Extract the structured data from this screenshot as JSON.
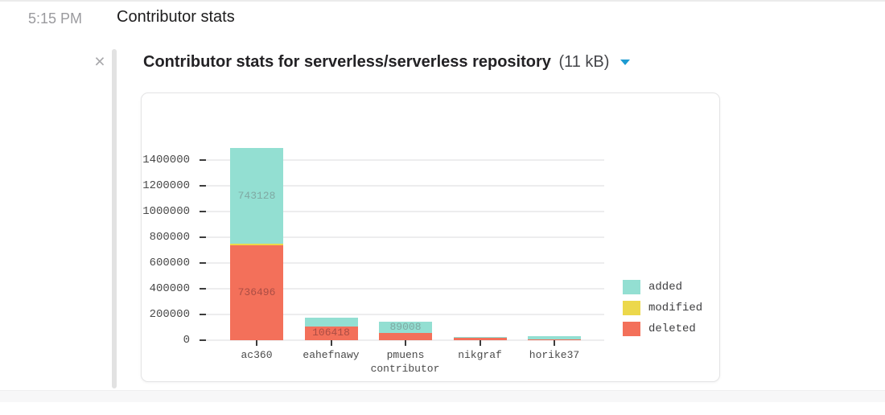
{
  "message": {
    "timestamp": "5:15 PM",
    "text": "Contributor stats"
  },
  "attachment": {
    "close_icon": "×",
    "title": "Contributor stats for serverless/serverless repository",
    "file_size": "(11 kB)",
    "chevron_icon": "chevron-down"
  },
  "colors": {
    "accent_blue": "#1d9bd1",
    "added": "#93dfd2",
    "modified": "#ecd84b",
    "deleted": "#f3705a",
    "gridline": "#ededee",
    "chart_text": "#4a4a4a"
  },
  "chart_data": {
    "type": "bar",
    "stacked": true,
    "title": "",
    "xlabel": "contributor",
    "ylabel": "",
    "categories": [
      "ac360",
      "eahefnawy",
      "pmuens",
      "nikgraf",
      "horike37"
    ],
    "series": [
      {
        "name": "added",
        "color": "#93dfd2",
        "label_color": "#7fa8a2",
        "values": [
          743128,
          68000,
          89008,
          10000,
          24000
        ],
        "value_labels": [
          "743128",
          null,
          "89008",
          null,
          null
        ]
      },
      {
        "name": "modified",
        "color": "#ecd84b",
        "label_color": "#b5a23a",
        "values": [
          12000,
          0,
          0,
          0,
          0
        ],
        "value_labels": [
          null,
          null,
          null,
          null,
          null
        ]
      },
      {
        "name": "deleted",
        "color": "#f3705a",
        "label_color": "#ab4d44",
        "values": [
          736496,
          106418,
          55000,
          18000,
          7000
        ],
        "value_labels": [
          "736496",
          "106418",
          null,
          null,
          null
        ]
      }
    ],
    "stack_order_bottom_to_top": [
      "deleted",
      "modified",
      "added"
    ],
    "yticks": [
      0,
      200000,
      400000,
      600000,
      800000,
      1000000,
      1200000,
      1400000
    ],
    "ylim": [
      0,
      1760000
    ],
    "grid": true,
    "legend": {
      "position": "right",
      "entries": [
        "added",
        "modified",
        "deleted"
      ]
    }
  }
}
